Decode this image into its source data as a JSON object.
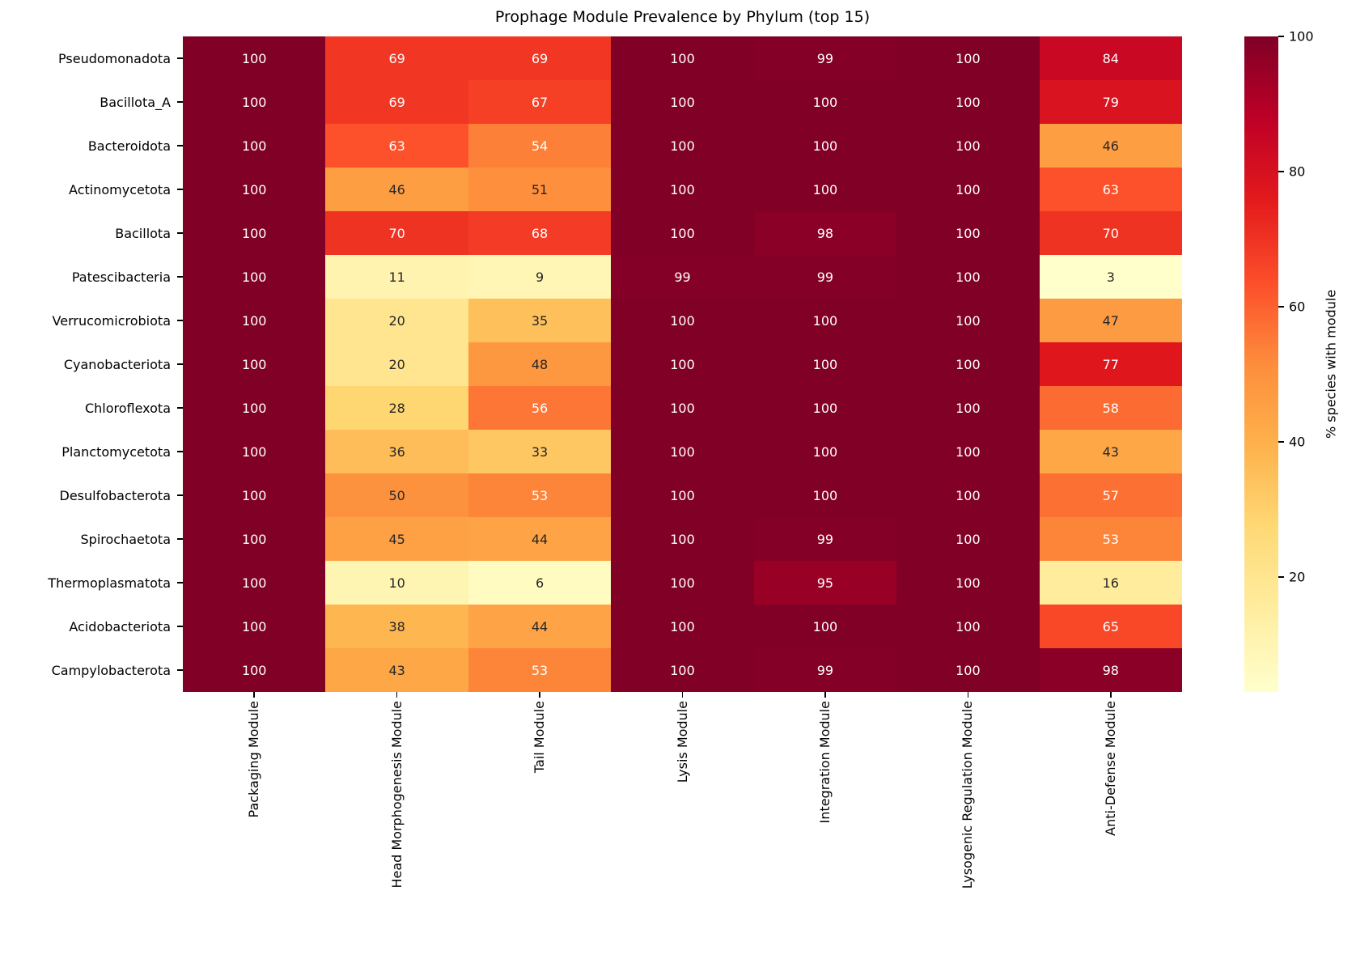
{
  "chart_data": {
    "type": "heatmap",
    "title": "Prophage Module Prevalence by Phylum (top 15)",
    "colorbar_label": "% species with module",
    "colormap": {
      "name": "YlOrRd",
      "anchors": [
        "#ffffcc",
        "#ffeda0",
        "#fed976",
        "#feb24c",
        "#fd8d3c",
        "#fc4e2a",
        "#e31a1c",
        "#bd0026",
        "#800026"
      ]
    },
    "vmin": 3,
    "vmax": 100,
    "colorbar_ticks": [
      20,
      40,
      60,
      80,
      100
    ],
    "annotation_colors": {
      "on_light": "#262626",
      "on_dark": "#ffffff"
    },
    "columns": [
      "Packaging Module",
      "Head Morphogenesis Module",
      "Tail Module",
      "Lysis Module",
      "Integration Module",
      "Lysogenic Regulation Module",
      "Anti-Defense Module"
    ],
    "rows": [
      "Pseudomonadota",
      "Bacillota_A",
      "Bacteroidota",
      "Actinomycetota",
      "Bacillota",
      "Patescibacteria",
      "Verrucomicrobiota",
      "Cyanobacteriota",
      "Chloroflexota",
      "Planctomycetota",
      "Desulfobacterota",
      "Spirochaetota",
      "Thermoplasmatota",
      "Acidobacteriota",
      "Campylobacterota"
    ],
    "values": [
      [
        100,
        69,
        69,
        100,
        99,
        100,
        84
      ],
      [
        100,
        69,
        67,
        100,
        100,
        100,
        79
      ],
      [
        100,
        63,
        54,
        100,
        100,
        100,
        46
      ],
      [
        100,
        46,
        51,
        100,
        100,
        100,
        63
      ],
      [
        100,
        70,
        68,
        100,
        98,
        100,
        70
      ],
      [
        100,
        11,
        9,
        99,
        99,
        100,
        3
      ],
      [
        100,
        20,
        35,
        100,
        100,
        100,
        47
      ],
      [
        100,
        20,
        48,
        100,
        100,
        100,
        77
      ],
      [
        100,
        28,
        56,
        100,
        100,
        100,
        58
      ],
      [
        100,
        36,
        33,
        100,
        100,
        100,
        43
      ],
      [
        100,
        50,
        53,
        100,
        100,
        100,
        57
      ],
      [
        100,
        45,
        44,
        100,
        99,
        100,
        53
      ],
      [
        100,
        10,
        6,
        100,
        95,
        100,
        16
      ],
      [
        100,
        38,
        44,
        100,
        100,
        100,
        65
      ],
      [
        100,
        43,
        53,
        100,
        99,
        100,
        98
      ]
    ]
  }
}
